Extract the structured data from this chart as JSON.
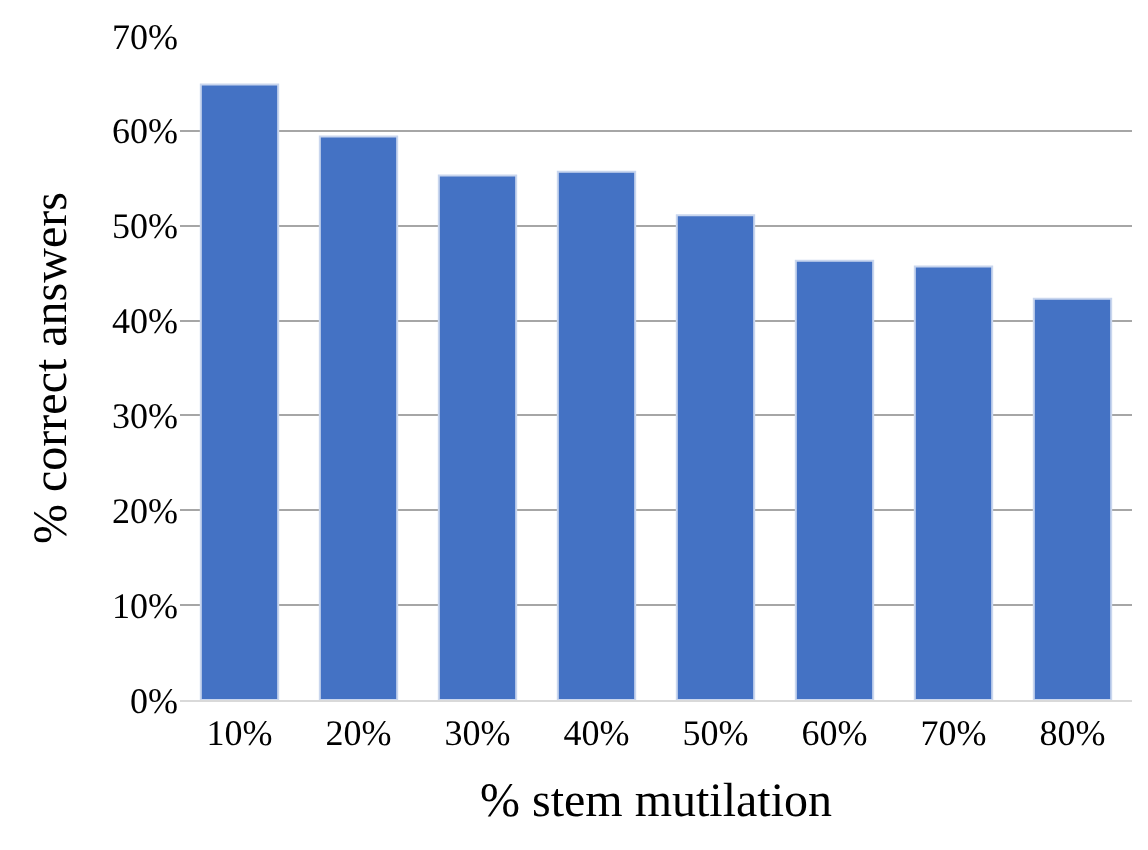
{
  "chart_data": {
    "type": "bar",
    "xlabel": "% stem mutilation",
    "ylabel": "% correct answers",
    "categories": [
      "10%",
      "20%",
      "30%",
      "40%",
      "50%",
      "60%",
      "70%",
      "80%"
    ],
    "values": [
      64.9,
      59.4,
      55.3,
      55.7,
      51.1,
      46.3,
      45.7,
      42.3
    ],
    "color": "#4472c4",
    "ylim": [
      0,
      70
    ],
    "yticks": [
      {
        "value": 0,
        "label": "0%"
      },
      {
        "value": 10,
        "label": "10%"
      },
      {
        "value": 20,
        "label": "20%"
      },
      {
        "value": 30,
        "label": "30%"
      },
      {
        "value": 40,
        "label": "40%"
      },
      {
        "value": 50,
        "label": "50%"
      },
      {
        "value": 60,
        "label": "60%"
      },
      {
        "value": 70,
        "label": "70%"
      }
    ],
    "grid": "y",
    "legend": false
  }
}
